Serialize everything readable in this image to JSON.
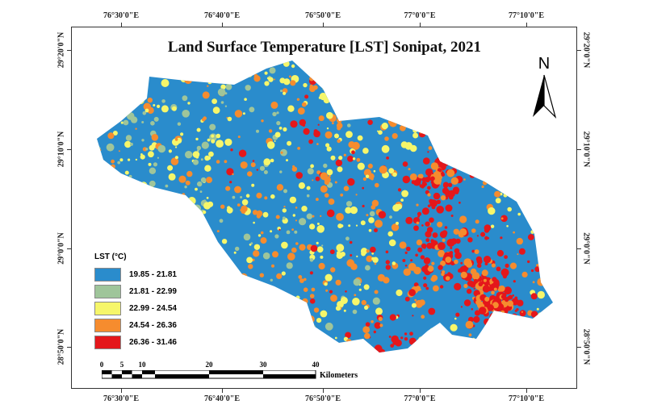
{
  "title": "Land Surface Temperature [LST] Sonipat, 2021",
  "x_labels": [
    "76°30'0\"E",
    "76°40'0\"E",
    "76°50'0\"E",
    "77°0'0\"E",
    "77°10'0\"E"
  ],
  "y_labels": [
    "29°20'0\"N",
    "29°10'0\"N",
    "29°0'0\"N",
    "28°50'0\"N"
  ],
  "north_label": "N",
  "legend": {
    "title": "LST (°C)",
    "classes": [
      {
        "label": "19.85 - 21.81",
        "color": "#2a8ccc"
      },
      {
        "label": "21.81 - 22.99",
        "color": "#9fc59a"
      },
      {
        "label": "22.99 - 24.54",
        "color": "#f6f66a"
      },
      {
        "label": "24.54 - 26.36",
        "color": "#f68c2e"
      },
      {
        "label": "26.36 - 31.46",
        "color": "#e4171b"
      }
    ]
  },
  "scale_bar": {
    "ticks": [
      "0",
      "5",
      "10",
      "20",
      "30",
      "40"
    ],
    "unit": "Kilometers"
  }
}
